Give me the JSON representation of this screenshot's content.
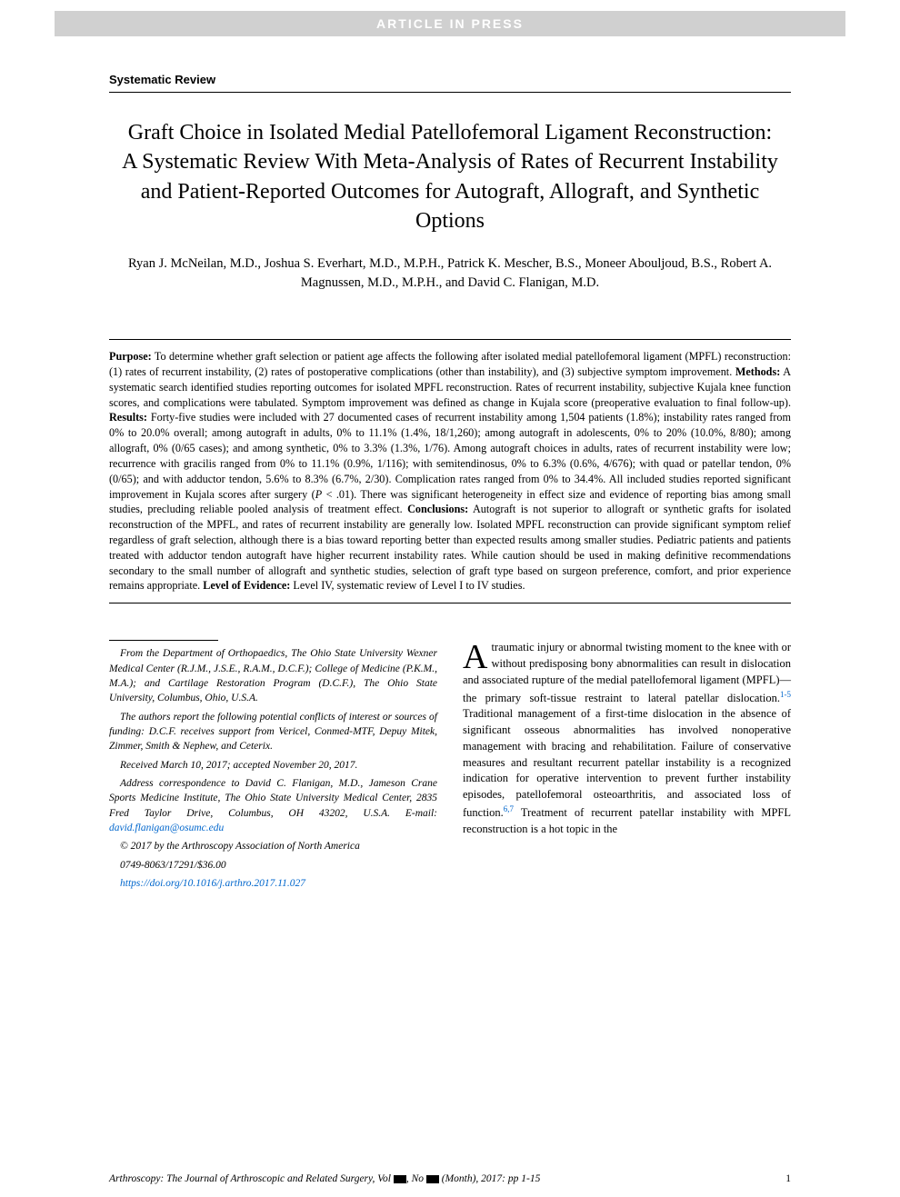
{
  "banner": "ARTICLE IN PRESS",
  "section_label": "Systematic Review",
  "title": "Graft Choice in Isolated Medial Patellofemoral Ligament Reconstruction: A Systematic Review With Meta-Analysis of Rates of Recurrent Instability and Patient-Reported Outcomes for Autograft, Allograft, and Synthetic Options",
  "authors": "Ryan J. McNeilan, M.D., Joshua S. Everhart, M.D., M.P.H., Patrick K. Mescher, B.S., Moneer Abouljoud, B.S., Robert A. Magnussen, M.D., M.P.H., and David C. Flanigan, M.D.",
  "abstract": {
    "purpose_label": "Purpose:",
    "purpose": " To determine whether graft selection or patient age affects the following after isolated medial patellofemoral ligament (MPFL) reconstruction: (1) rates of recurrent instability, (2) rates of postoperative complications (other than instability), and (3) subjective symptom improvement. ",
    "methods_label": "Methods:",
    "methods": " A systematic search identified studies reporting outcomes for isolated MPFL reconstruction. Rates of recurrent instability, subjective Kujala knee function scores, and complications were tabulated. Symptom improvement was defined as change in Kujala score (preoperative evaluation to final follow-up). ",
    "results_label": "Results:",
    "results": " Forty-five studies were included with 27 documented cases of recurrent instability among 1,504 patients (1.8%); instability rates ranged from 0% to 20.0% overall; among autograft in adults, 0% to 11.1% (1.4%, 18/1,260); among autograft in adolescents, 0% to 20% (10.0%, 8/80); among allograft, 0% (0/65 cases); and among synthetic, 0% to 3.3% (1.3%, 1/76). Among autograft choices in adults, rates of recurrent instability were low; recurrence with gracilis ranged from 0% to 11.1% (0.9%, 1/116); with semitendinosus, 0% to 6.3% (0.6%, 4/676); with quad or patellar tendon, 0% (0/65); and with adductor tendon, 5.6% to 8.3% (6.7%, 2/30). Complication rates ranged from 0% to 34.4%. All included studies reported significant improvement in Kujala scores after surgery (",
    "results_p": "P",
    "results_tail": " < .01). There was significant heterogeneity in effect size and evidence of reporting bias among small studies, precluding reliable pooled analysis of treatment effect. ",
    "conclusions_label": "Conclusions:",
    "conclusions": " Autograft is not superior to allograft or synthetic grafts for isolated reconstruction of the MPFL, and rates of recurrent instability are generally low. Isolated MPFL reconstruction can provide significant symptom relief regardless of graft selection, although there is a bias toward reporting better than expected results among smaller studies. Pediatric patients and patients treated with adductor tendon autograft have higher recurrent instability rates. While caution should be used in making definitive recommendations secondary to the small number of allograft and synthetic studies, selection of graft type based on surgeon preference, comfort, and prior experience remains appropriate. ",
    "loe_label": "Level of Evidence:",
    "loe": " Level IV, systematic review of Level I to IV studies."
  },
  "footnotes": {
    "affiliation": "From the Department of Orthopaedics, The Ohio State University Wexner Medical Center (R.J.M., J.S.E., R.A.M., D.C.F.); College of Medicine (P.K.M., M.A.); and Cartilage Restoration Program (D.C.F.), The Ohio State University, Columbus, Ohio, U.S.A.",
    "conflicts": "The authors report the following potential conflicts of interest or sources of funding: D.C.F. receives support from Vericel, Conmed-MTF, Depuy Mitek, Zimmer, Smith & Nephew, and Ceterix.",
    "dates": "Received March 10, 2017; accepted November 20, 2017.",
    "address_pre": "Address correspondence to David C. Flanigan, M.D., Jameson Crane Sports Medicine Institute, The Ohio State University Medical Center, 2835 Fred Taylor Drive, Columbus, OH 43202, U.S.A. E-mail: ",
    "email": "david.flanigan@osumc.edu",
    "copyright": "© 2017 by the Arthroscopy Association of North America",
    "issn": "0749-8063/17291/$36.00",
    "doi": "https://doi.org/10.1016/j.arthro.2017.11.027"
  },
  "body": {
    "first_letter": "A",
    "para1_a": "traumatic injury or abnormal twisting moment to the knee with or without predisposing bony abnormalities can result in dislocation and associated rupture of the medial patellofemoral ligament (MPFL)—the primary soft-tissue restraint to lateral patellar dislocation.",
    "sup1": "1-5",
    "para1_b": " Traditional management of a first-time dislocation in the absence of significant osseous abnormalities has involved nonoperative management with bracing and rehabilitation. Failure of conservative measures and resultant recurrent patellar instability is a recognized indication for operative intervention to prevent further instability episodes, patellofemoral osteoarthritis, and associated loss of function.",
    "sup2": "6,7",
    "para1_c": " Treatment of recurrent patellar instability with MPFL reconstruction is a hot topic in the"
  },
  "footer": {
    "journal_a": "Arthroscopy: The Journal of Arthroscopic and Related Surgery, Vol ",
    "journal_b": ", No ",
    "journal_c": " (Month), 2017: pp 1-15",
    "page": "1"
  },
  "colors": {
    "banner_bg": "#d0d0d0",
    "banner_fg": "#ffffff",
    "link": "#0066cc",
    "text": "#000000",
    "bg": "#ffffff"
  }
}
